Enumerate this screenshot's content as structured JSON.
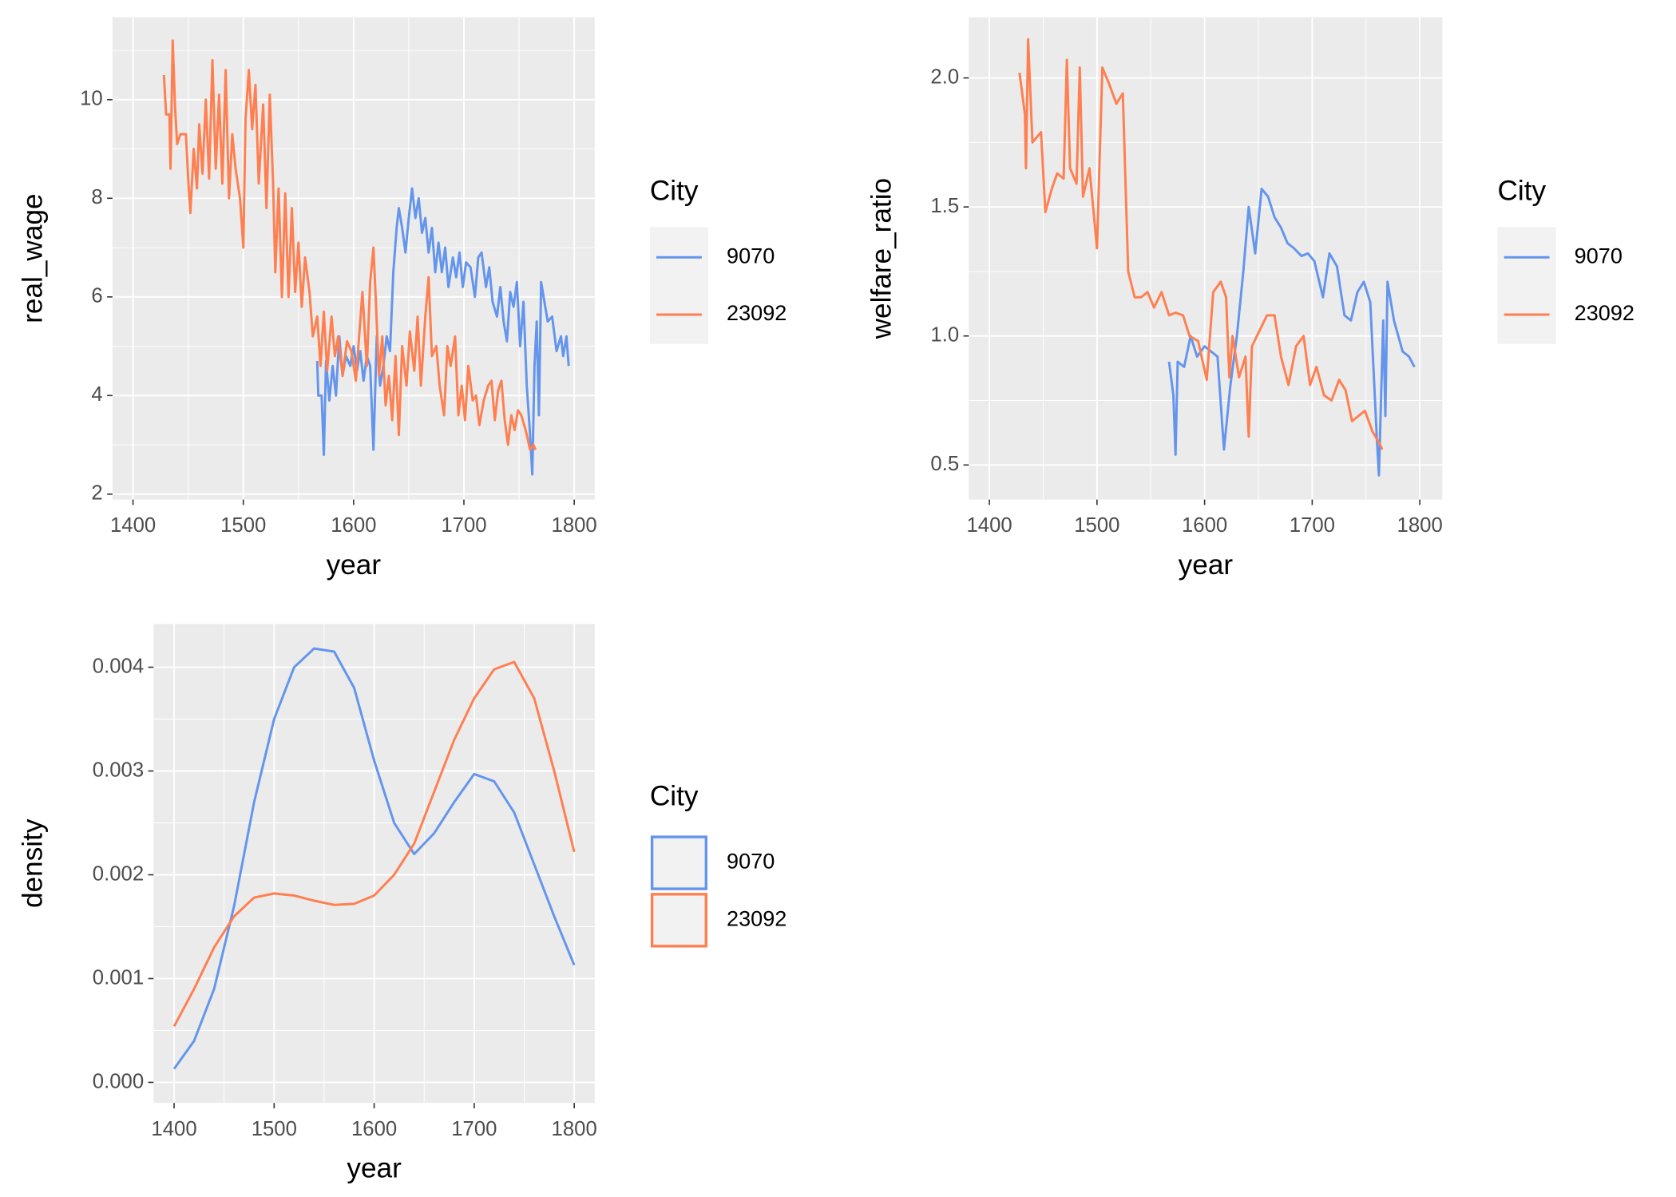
{
  "chart_data": [
    {
      "type": "line",
      "x_label": "year",
      "y_label": "real_wage",
      "legend_title": "City",
      "xlim": [
        1381.4,
        1818.6
      ],
      "xticks": [
        1400,
        1500,
        1600,
        1700,
        1800
      ],
      "ylim": [
        1.89,
        11.67
      ],
      "yticks": [
        2,
        4,
        6,
        8,
        10
      ],
      "grid": true,
      "series": [
        {
          "name": "9070",
          "color": "#6495ED",
          "x": [
            1567,
            1568,
            1571,
            1573,
            1575,
            1578,
            1581,
            1584,
            1587,
            1590,
            1593,
            1597,
            1600,
            1603,
            1606,
            1609,
            1612,
            1615,
            1618,
            1621,
            1624,
            1627,
            1630,
            1633,
            1636,
            1639,
            1641,
            1644,
            1647,
            1650,
            1653,
            1656,
            1659,
            1662,
            1665,
            1668,
            1671,
            1674,
            1677,
            1680,
            1683,
            1686,
            1690,
            1693,
            1696,
            1699,
            1702,
            1706,
            1710,
            1713,
            1716,
            1720,
            1723,
            1726,
            1730,
            1733,
            1736,
            1739,
            1742,
            1745,
            1748,
            1751,
            1754,
            1757,
            1760,
            1762,
            1764,
            1766,
            1768,
            1770,
            1773,
            1776,
            1780,
            1784,
            1788,
            1790,
            1793,
            1795
          ],
          "values": [
            4.7,
            4.0,
            4.0,
            2.8,
            4.7,
            3.9,
            4.6,
            4.0,
            5.2,
            4.4,
            4.8,
            4.6,
            5.0,
            4.5,
            4.9,
            4.3,
            4.8,
            4.6,
            2.9,
            5.2,
            4.2,
            4.6,
            5.2,
            4.9,
            6.5,
            7.4,
            7.8,
            7.4,
            6.9,
            7.6,
            8.2,
            7.6,
            8.0,
            7.3,
            7.6,
            6.9,
            7.4,
            6.5,
            7.1,
            6.5,
            7.0,
            6.2,
            6.8,
            6.4,
            6.9,
            6.2,
            6.7,
            6.6,
            6.0,
            6.8,
            6.9,
            6.2,
            6.6,
            5.9,
            5.6,
            6.2,
            5.5,
            5.1,
            6.1,
            5.8,
            6.3,
            5.0,
            5.9,
            4.2,
            3.2,
            2.4,
            4.6,
            5.5,
            3.6,
            6.3,
            5.9,
            5.5,
            5.6,
            4.9,
            5.2,
            4.8,
            5.2,
            4.6
          ]
        },
        {
          "name": "23092",
          "color": "#FF7F50",
          "x": [
            1428,
            1430,
            1433,
            1434,
            1436,
            1438,
            1440,
            1443,
            1448,
            1450,
            1452,
            1455,
            1458,
            1460,
            1463,
            1466,
            1469,
            1472,
            1475,
            1478,
            1481,
            1484,
            1487,
            1490,
            1493,
            1497,
            1500,
            1502,
            1505,
            1508,
            1511,
            1514,
            1518,
            1521,
            1524,
            1527,
            1529,
            1532,
            1535,
            1538,
            1541,
            1544,
            1547,
            1550,
            1553,
            1556,
            1560,
            1563,
            1567,
            1570,
            1573,
            1576,
            1580,
            1583,
            1586,
            1590,
            1594,
            1598,
            1602,
            1605,
            1608,
            1612,
            1615,
            1618,
            1620,
            1623,
            1626,
            1629,
            1632,
            1635,
            1638,
            1641,
            1644,
            1648,
            1651,
            1655,
            1658,
            1661,
            1665,
            1668,
            1671,
            1675,
            1678,
            1682,
            1685,
            1688,
            1692,
            1695,
            1698,
            1701,
            1704,
            1708,
            1711,
            1714,
            1718,
            1722,
            1725,
            1728,
            1731,
            1734,
            1737,
            1740,
            1743,
            1746,
            1749,
            1752,
            1756,
            1760,
            1763,
            1765
          ],
          "values": [
            10.5,
            9.7,
            9.7,
            8.6,
            11.2,
            9.9,
            9.1,
            9.3,
            9.3,
            8.4,
            7.7,
            9.0,
            8.2,
            9.5,
            8.5,
            10.0,
            8.4,
            10.8,
            8.6,
            10.1,
            8.3,
            10.6,
            8.0,
            9.3,
            8.6,
            8.0,
            7.0,
            9.6,
            10.6,
            9.4,
            10.3,
            8.3,
            9.9,
            7.8,
            10.1,
            8.3,
            6.5,
            8.2,
            6.0,
            8.1,
            6.0,
            7.8,
            6.1,
            7.1,
            5.8,
            6.8,
            6.1,
            5.2,
            5.6,
            4.6,
            5.7,
            4.5,
            5.6,
            4.8,
            5.2,
            4.4,
            5.1,
            4.9,
            4.3,
            5.2,
            6.1,
            4.6,
            6.3,
            7.0,
            6.0,
            4.4,
            5.2,
            3.8,
            4.4,
            3.5,
            4.8,
            3.2,
            5.0,
            4.2,
            5.3,
            4.5,
            5.6,
            4.2,
            5.6,
            6.4,
            4.8,
            5.0,
            4.2,
            3.6,
            5.0,
            4.6,
            5.2,
            3.6,
            4.2,
            3.5,
            4.6,
            3.9,
            4.0,
            3.4,
            3.9,
            4.2,
            4.3,
            3.5,
            4.1,
            4.3,
            3.5,
            3.0,
            3.6,
            3.3,
            3.7,
            3.6,
            3.3,
            2.9,
            3.0,
            2.9
          ]
        }
      ]
    },
    {
      "type": "line",
      "x_label": "year",
      "y_label": "welfare_ratio",
      "legend_title": "City",
      "xlim": [
        1380.9,
        1821.0
      ],
      "xticks": [
        1400,
        1500,
        1600,
        1700,
        1800
      ],
      "ylim": [
        0.366,
        2.235
      ],
      "yticks": [
        0.5,
        {
          "value": 1,
          "label": "1.0"
        },
        1.5,
        {
          "value": 2,
          "label": "2.0"
        }
      ],
      "grid": true,
      "series": [
        {
          "name": "9070",
          "color": "#6495ED",
          "x": [
            1567,
            1571,
            1573,
            1575,
            1581,
            1587,
            1593,
            1600,
            1606,
            1612,
            1618,
            1624,
            1630,
            1636,
            1641,
            1647,
            1653,
            1659,
            1665,
            1671,
            1677,
            1683,
            1690,
            1696,
            1702,
            1710,
            1716,
            1723,
            1730,
            1736,
            1742,
            1748,
            1754,
            1760,
            1762,
            1766,
            1768,
            1770,
            1776,
            1784,
            1790,
            1795
          ],
          "values": [
            0.9,
            0.77,
            0.54,
            0.9,
            0.88,
            1.0,
            0.92,
            0.96,
            0.94,
            0.92,
            0.56,
            0.81,
            1.0,
            1.25,
            1.5,
            1.32,
            1.57,
            1.54,
            1.46,
            1.42,
            1.36,
            1.34,
            1.31,
            1.32,
            1.29,
            1.15,
            1.32,
            1.27,
            1.08,
            1.06,
            1.17,
            1.21,
            1.13,
            0.61,
            0.46,
            1.06,
            0.69,
            1.21,
            1.06,
            0.94,
            0.92,
            0.88
          ]
        },
        {
          "name": "23092",
          "color": "#FF7F50",
          "x": [
            1428,
            1433,
            1434,
            1436,
            1440,
            1448,
            1452,
            1458,
            1463,
            1469,
            1472,
            1475,
            1481,
            1484,
            1487,
            1493,
            1500,
            1505,
            1511,
            1518,
            1524,
            1529,
            1535,
            1541,
            1547,
            1553,
            1560,
            1567,
            1573,
            1580,
            1586,
            1594,
            1602,
            1608,
            1615,
            1620,
            1623,
            1626,
            1632,
            1638,
            1641,
            1644,
            1651,
            1658,
            1665,
            1671,
            1678,
            1685,
            1692,
            1698,
            1704,
            1711,
            1718,
            1725,
            1731,
            1737,
            1743,
            1749,
            1756,
            1763,
            1765
          ],
          "values": [
            2.02,
            1.86,
            1.65,
            2.15,
            1.75,
            1.79,
            1.48,
            1.57,
            1.63,
            1.61,
            2.07,
            1.65,
            1.59,
            2.04,
            1.54,
            1.65,
            1.34,
            2.04,
            1.98,
            1.9,
            1.94,
            1.25,
            1.15,
            1.15,
            1.17,
            1.11,
            1.17,
            1.08,
            1.09,
            1.08,
            1.0,
            0.98,
            0.83,
            1.17,
            1.21,
            1.15,
            0.84,
            1.0,
            0.84,
            0.92,
            0.61,
            0.96,
            1.02,
            1.08,
            1.08,
            0.92,
            0.81,
            0.96,
            1.0,
            0.81,
            0.88,
            0.77,
            0.75,
            0.83,
            0.79,
            0.67,
            0.69,
            0.71,
            0.63,
            0.58,
            0.56
          ]
        }
      ]
    },
    {
      "type": "density",
      "x_label": "year",
      "y_label": "density",
      "legend_title": "City",
      "xlim": [
        1379.5,
        1820.5
      ],
      "xticks": [
        1400,
        1500,
        1600,
        1700,
        1800
      ],
      "ylim": [
        -0.000198,
        0.004417
      ],
      "yticks": [
        {
          "value": 0,
          "label": "0.000"
        },
        {
          "value": 0.001,
          "label": "0.001"
        },
        {
          "value": 0.002,
          "label": "0.002"
        },
        {
          "value": 0.003,
          "label": "0.003"
        },
        {
          "value": 0.004,
          "label": "0.004"
        }
      ],
      "grid": true,
      "x": [
        1400,
        1420,
        1440,
        1460,
        1480,
        1500,
        1520,
        1540,
        1560,
        1580,
        1600,
        1620,
        1640,
        1660,
        1680,
        1700,
        1720,
        1740,
        1760,
        1780,
        1800
      ],
      "series": [
        {
          "name": "9070",
          "color": "#6495ED",
          "values": [
            0.00013,
            0.0004,
            0.0009,
            0.0017,
            0.0027,
            0.0035,
            0.004,
            0.00418,
            0.00415,
            0.0038,
            0.0031,
            0.0025,
            0.0022,
            0.0024,
            0.0027,
            0.00297,
            0.0029,
            0.0026,
            0.0021,
            0.0016,
            0.00113
          ]
        },
        {
          "name": "23092",
          "color": "#FF7F50",
          "values": [
            0.00054,
            0.0009,
            0.0013,
            0.0016,
            0.00178,
            0.00182,
            0.0018,
            0.00175,
            0.00171,
            0.00172,
            0.0018,
            0.002,
            0.0023,
            0.0028,
            0.0033,
            0.0037,
            0.00398,
            0.00405,
            0.0037,
            0.003,
            0.00222
          ]
        }
      ]
    }
  ]
}
